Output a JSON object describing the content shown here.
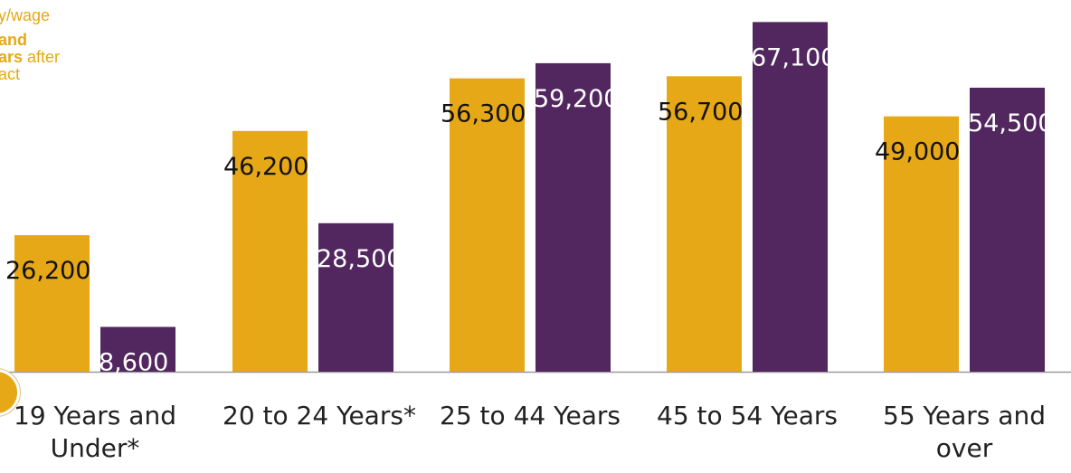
{
  "legend": {
    "line1": "y/wage",
    "line2": "and",
    "line3_bold": "ars",
    "line3_rest": " after",
    "line4": "act"
  },
  "colors": {
    "series_a": "#e6a817",
    "series_b": "#52265f",
    "axis": "#9a9a9a"
  },
  "chart_data": {
    "type": "bar",
    "categories": [
      "19 Years and Under*",
      "20 to 24 Years*",
      "25 to 44 Years",
      "45 to 54 Years",
      "55 Years and over"
    ],
    "category_lines": [
      [
        "19 Years and",
        "Under*"
      ],
      [
        "20 to 24 Years*"
      ],
      [
        "25 to 44 Years"
      ],
      [
        "45 to 54 Years"
      ],
      [
        "55 Years and",
        "over"
      ]
    ],
    "series": [
      {
        "values": [
          26200,
          46200,
          56300,
          56700,
          49000
        ],
        "labels": [
          "26,200",
          "46,200",
          "56,300",
          "56,700",
          "49,000"
        ]
      },
      {
        "values": [
          8600,
          28500,
          59200,
          67100,
          54500
        ],
        "labels": [
          "8,600",
          "28,500",
          "59,200",
          "67,100",
          "54,500"
        ]
      }
    ],
    "ylim": [
      0,
      70000
    ],
    "grid": false
  }
}
